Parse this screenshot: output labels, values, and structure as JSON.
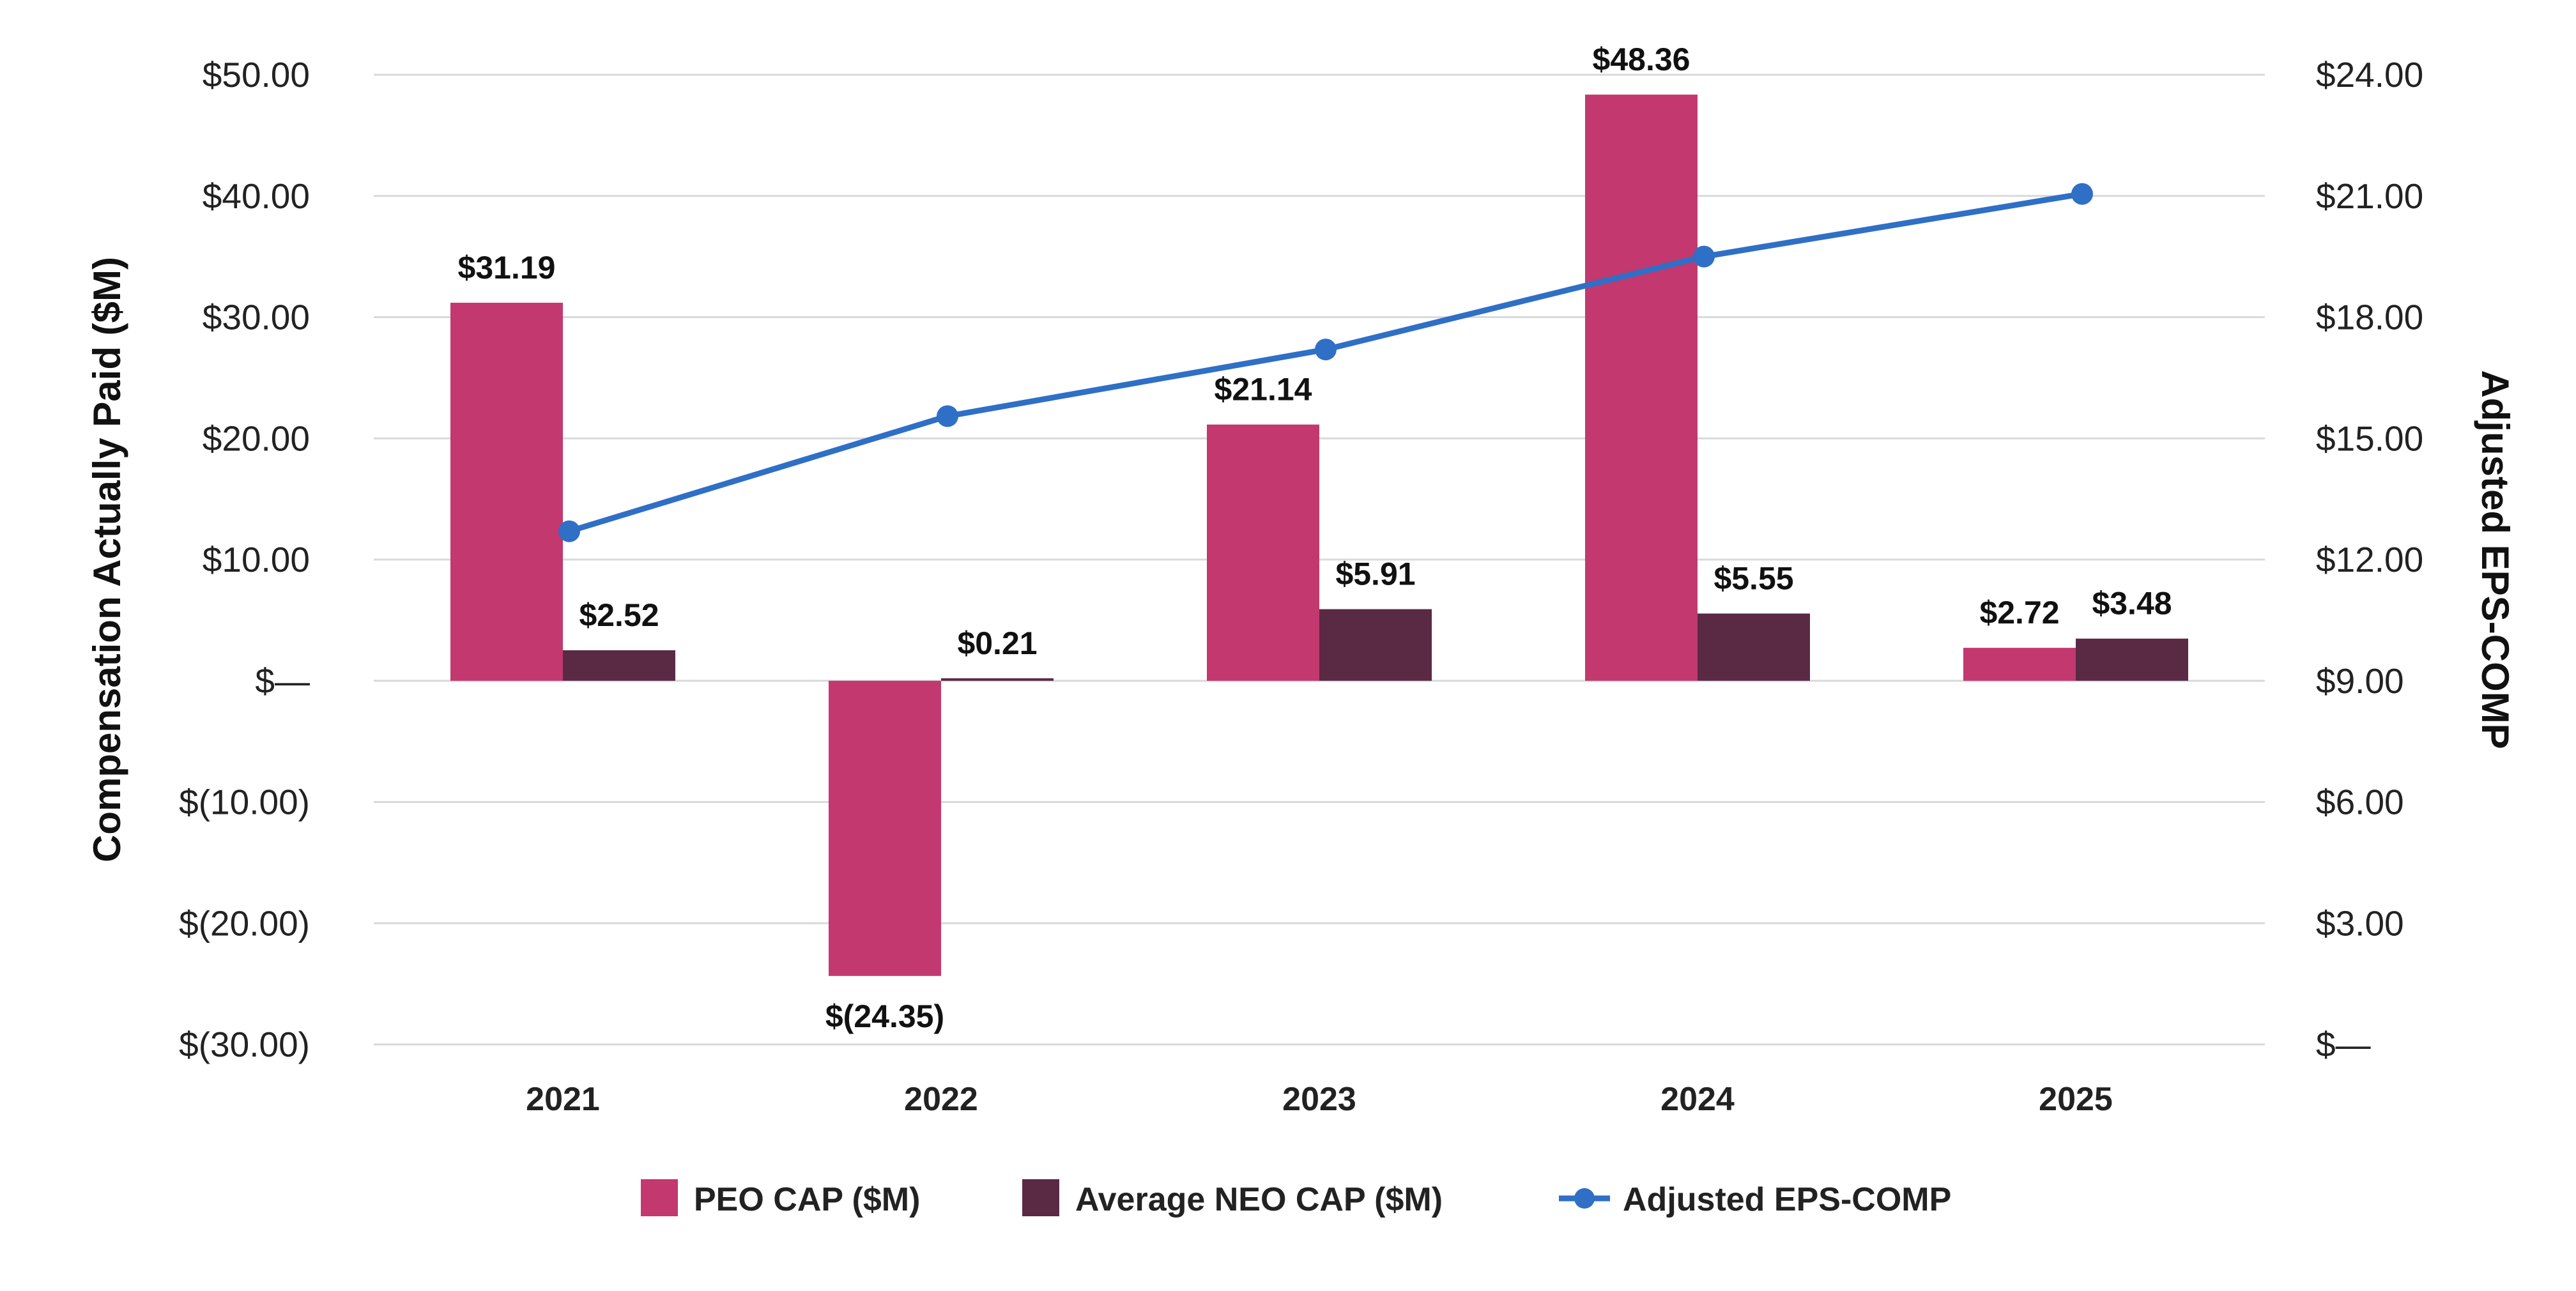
{
  "chart_data": {
    "type": "bar",
    "categories": [
      "2021",
      "2022",
      "2023",
      "2024",
      "2025"
    ],
    "series": [
      {
        "name": "PEO CAP ($M)",
        "kind": "bar",
        "axis": "left",
        "color": "#C2386F",
        "values": [
          31.19,
          -24.35,
          21.14,
          48.36,
          2.72
        ],
        "labels": [
          "$31.19",
          "$(24.35)",
          "$21.14",
          "$48.36",
          "$2.72"
        ]
      },
      {
        "name": "Average NEO CAP ($M)",
        "kind": "bar",
        "axis": "left",
        "color": "#5A2A45",
        "values": [
          2.52,
          0.21,
          5.91,
          5.55,
          3.48
        ],
        "labels": [
          "$2.52",
          "$0.21",
          "$5.91",
          "$5.55",
          "$3.48"
        ]
      },
      {
        "name": "Adjusted EPS-COMP",
        "kind": "line",
        "axis": "right",
        "color": "#2F6FC6",
        "values": [
          12.7,
          15.55,
          17.2,
          19.5,
          21.05
        ]
      }
    ],
    "ylabel": "Compensation Actually Paid ($M)",
    "y2label": "Adjusted EPS-COMP",
    "ylim": [
      -30,
      50
    ],
    "y2lim": [
      0,
      24
    ],
    "yticks": [
      50,
      40,
      30,
      20,
      10,
      0,
      -10,
      -20,
      -30
    ],
    "ytick_labels": [
      "$50.00",
      "$40.00",
      "$30.00",
      "$20.00",
      "$10.00",
      "$—",
      "$(10.00)",
      "$(20.00)",
      "$(30.00)"
    ],
    "y2ticks": [
      24,
      21,
      18,
      15,
      12,
      9,
      6,
      3,
      0
    ],
    "y2tick_labels": [
      "$24.00",
      "$21.00",
      "$18.00",
      "$15.00",
      "$12.00",
      "$9.00",
      "$6.00",
      "$3.00",
      "$—"
    ],
    "grid": true,
    "legend_position": "bottom"
  }
}
